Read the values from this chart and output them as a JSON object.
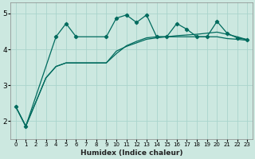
{
  "xlabel": "Humidex (Indice chaleur)",
  "xlim": [
    -0.5,
    23.5
  ],
  "ylim": [
    1.5,
    5.3
  ],
  "yticks": [
    2,
    3,
    4,
    5
  ],
  "xticks": [
    0,
    1,
    2,
    3,
    4,
    5,
    6,
    7,
    8,
    9,
    10,
    11,
    12,
    13,
    14,
    15,
    16,
    17,
    18,
    19,
    20,
    21,
    22,
    23
  ],
  "bg_color": "#cce8e0",
  "grid_color": "#aad4cc",
  "line_color": "#006b5e",
  "line1_x": [
    0,
    1,
    4,
    5,
    6,
    9,
    10,
    11,
    12,
    13,
    14,
    15,
    16,
    17,
    18,
    19,
    20,
    21,
    22,
    23
  ],
  "line1_y": [
    2.4,
    1.85,
    4.35,
    4.72,
    4.35,
    4.35,
    4.87,
    4.96,
    4.75,
    4.96,
    4.35,
    4.35,
    4.72,
    4.56,
    4.35,
    4.35,
    4.78,
    4.45,
    4.32,
    4.27
  ],
  "line2_x": [
    0,
    1,
    3,
    4,
    5,
    9,
    10,
    11,
    12,
    13,
    14,
    15,
    16,
    17,
    18,
    19,
    20,
    21,
    22,
    23
  ],
  "line2_y": [
    2.4,
    1.85,
    3.2,
    3.52,
    3.62,
    3.62,
    3.88,
    4.1,
    4.22,
    4.32,
    4.35,
    4.35,
    4.35,
    4.35,
    4.35,
    4.35,
    4.35,
    4.3,
    4.28,
    4.25
  ],
  "line3_x": [
    0,
    1,
    3,
    4,
    5,
    9,
    10,
    11,
    12,
    13,
    14,
    15,
    16,
    17,
    18,
    19,
    20,
    21,
    22,
    23
  ],
  "line3_y": [
    2.4,
    1.85,
    3.2,
    3.52,
    3.62,
    3.62,
    3.95,
    4.08,
    4.18,
    4.28,
    4.32,
    4.35,
    4.38,
    4.4,
    4.42,
    4.45,
    4.48,
    4.42,
    4.35,
    4.27
  ]
}
